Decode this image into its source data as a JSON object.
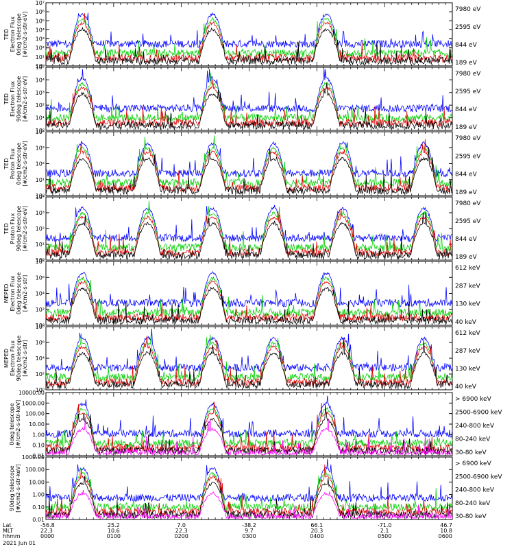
{
  "colors": {
    "black": "#000000",
    "red": "#e00000",
    "green": "#00d000",
    "blue": "#0000ff",
    "magenta": "#ff00ff"
  },
  "chart_data": [
    {
      "type": "line",
      "ylabel": [
        "TED",
        "Electron Flux",
        "0deg telescope",
        "[#/cm2-s-str-eV]"
      ],
      "log_y": true,
      "ylim_exp": [
        0,
        7
      ],
      "yticks": [
        "10⁰",
        "10¹",
        "10²",
        "10³",
        "10⁴",
        "10⁵",
        "10⁶",
        "10⁷"
      ],
      "series": [
        {
          "name": "7980 eV",
          "color": "black"
        },
        {
          "name": "2595 eV",
          "color": "red"
        },
        {
          "name": "844 eV",
          "color": "green"
        },
        {
          "name": "189 eV",
          "color": "blue"
        }
      ]
    },
    {
      "type": "line",
      "ylabel": [
        "TED",
        "Electron Flux",
        "90deg telescope",
        "[#/cm2-s-str-eV]"
      ],
      "log_y": true,
      "ylim_exp": [
        0,
        5
      ],
      "yticks": [
        "10⁰",
        "10¹",
        "10²",
        "10³",
        "10⁴",
        "10⁵"
      ],
      "series": [
        {
          "name": "7980 eV",
          "color": "black"
        },
        {
          "name": "2595 eV",
          "color": "red"
        },
        {
          "name": "844 eV",
          "color": "green"
        },
        {
          "name": "189 eV",
          "color": "blue"
        }
      ]
    },
    {
      "type": "line",
      "ylabel": [
        "TED",
        "Proton Flux",
        "0deg telescope",
        "[#/cm2-s-str-eV]"
      ],
      "log_y": true,
      "ylim_exp": [
        0,
        4.5
      ],
      "yticks": [
        "10⁰",
        "10¹",
        "10²",
        "10³",
        "10⁴"
      ],
      "series": [
        {
          "name": "7980 eV",
          "color": "black"
        },
        {
          "name": "2595 eV",
          "color": "red"
        },
        {
          "name": "844 eV",
          "color": "green"
        },
        {
          "name": "189 eV",
          "color": "blue"
        }
      ]
    },
    {
      "type": "line",
      "ylabel": [
        "TED",
        "Proton Flux",
        "90deg telescope",
        "[#/cm2-s-str-eV]"
      ],
      "log_y": true,
      "ylim_exp": [
        0,
        4.5
      ],
      "yticks": [
        "10⁰",
        "10¹",
        "10²",
        "10³",
        "10⁴"
      ],
      "series": [
        {
          "name": "7980 eV",
          "color": "black"
        },
        {
          "name": "2595 eV",
          "color": "red"
        },
        {
          "name": "844 eV",
          "color": "green"
        },
        {
          "name": "189 eV",
          "color": "blue"
        }
      ]
    },
    {
      "type": "line",
      "ylabel": [
        "MEPED",
        "Electron Flux",
        "0deg telescope",
        "[#/cm2-s-str]"
      ],
      "log_y": true,
      "ylim_exp": [
        0,
        8
      ],
      "yticks": [
        "10⁰",
        "10²",
        "10⁴",
        "10⁶",
        "10⁸"
      ],
      "series": [
        {
          "name": "612 keV",
          "color": "black"
        },
        {
          "name": "287 keV",
          "color": "red"
        },
        {
          "name": "130 keV",
          "color": "green"
        },
        {
          "name": "40 keV",
          "color": "blue"
        }
      ]
    },
    {
      "type": "line",
      "ylabel": [
        "MEPED",
        "Electron Flux",
        "90deg telescope",
        "[#/cm2-s-str]"
      ],
      "log_y": true,
      "ylim_exp": [
        0,
        8
      ],
      "yticks": [
        "10⁰",
        "10²",
        "10⁴",
        "10⁶",
        "10⁸"
      ],
      "series": [
        {
          "name": "612 keV",
          "color": "black"
        },
        {
          "name": "287 keV",
          "color": "red"
        },
        {
          "name": "130 keV",
          "color": "green"
        },
        {
          "name": "40 keV",
          "color": "blue"
        }
      ]
    },
    {
      "type": "line",
      "ylabel": [
        "0deg telescope",
        "[#/cm2-s-str-keV]"
      ],
      "log_y": true,
      "ylim_exp": [
        -2,
        4
      ],
      "yticks": [
        "0.01",
        "0.10",
        "1.00",
        "10.00",
        "100.00",
        "1000.00",
        "10000.00"
      ],
      "series": [
        {
          "name": "> 6900 keV",
          "color": "magenta"
        },
        {
          "name": "2500-6900 keV",
          "color": "black"
        },
        {
          "name": "240-800 keV",
          "color": "red"
        },
        {
          "name": "80-240 keV",
          "color": "green"
        },
        {
          "name": "30-80 keV",
          "color": "blue"
        }
      ]
    },
    {
      "type": "line",
      "ylabel": [
        "90deg telescope",
        "[#/cm2-s-str-keV]"
      ],
      "log_y": true,
      "ylim_exp": [
        -2,
        3
      ],
      "yticks": [
        "0.01",
        "0.10",
        "1.00",
        "10.00",
        "100.00",
        "1000.00"
      ],
      "series": [
        {
          "name": "> 6900 keV",
          "color": "magenta"
        },
        {
          "name": "2500-6900 keV",
          "color": "black"
        },
        {
          "name": "240-800 keV",
          "color": "red"
        },
        {
          "name": "80-240 keV",
          "color": "green"
        },
        {
          "name": "30-80 keV",
          "color": "blue"
        }
      ]
    }
  ],
  "x_axis": {
    "row_labels": [
      "Lat",
      "MLT",
      "hhmm"
    ],
    "ticks": [
      {
        "lat": "-56.8",
        "mlt": "22.3",
        "hhmm": "0000"
      },
      {
        "lat": "25.2",
        "mlt": "10.6",
        "hhmm": "0100"
      },
      {
        "lat": "7.0",
        "mlt": "22.3",
        "hhmm": "0200"
      },
      {
        "lat": "-38.2",
        "mlt": "9.7",
        "hhmm": "0300"
      },
      {
        "lat": "66.1",
        "mlt": "20.3",
        "hhmm": "0400"
      },
      {
        "lat": "-71.0",
        "mlt": "2.1",
        "hhmm": "0500"
      },
      {
        "lat": "46.7",
        "mlt": "10.8",
        "hhmm": "0600"
      }
    ],
    "date": "2021 Jun 01"
  }
}
